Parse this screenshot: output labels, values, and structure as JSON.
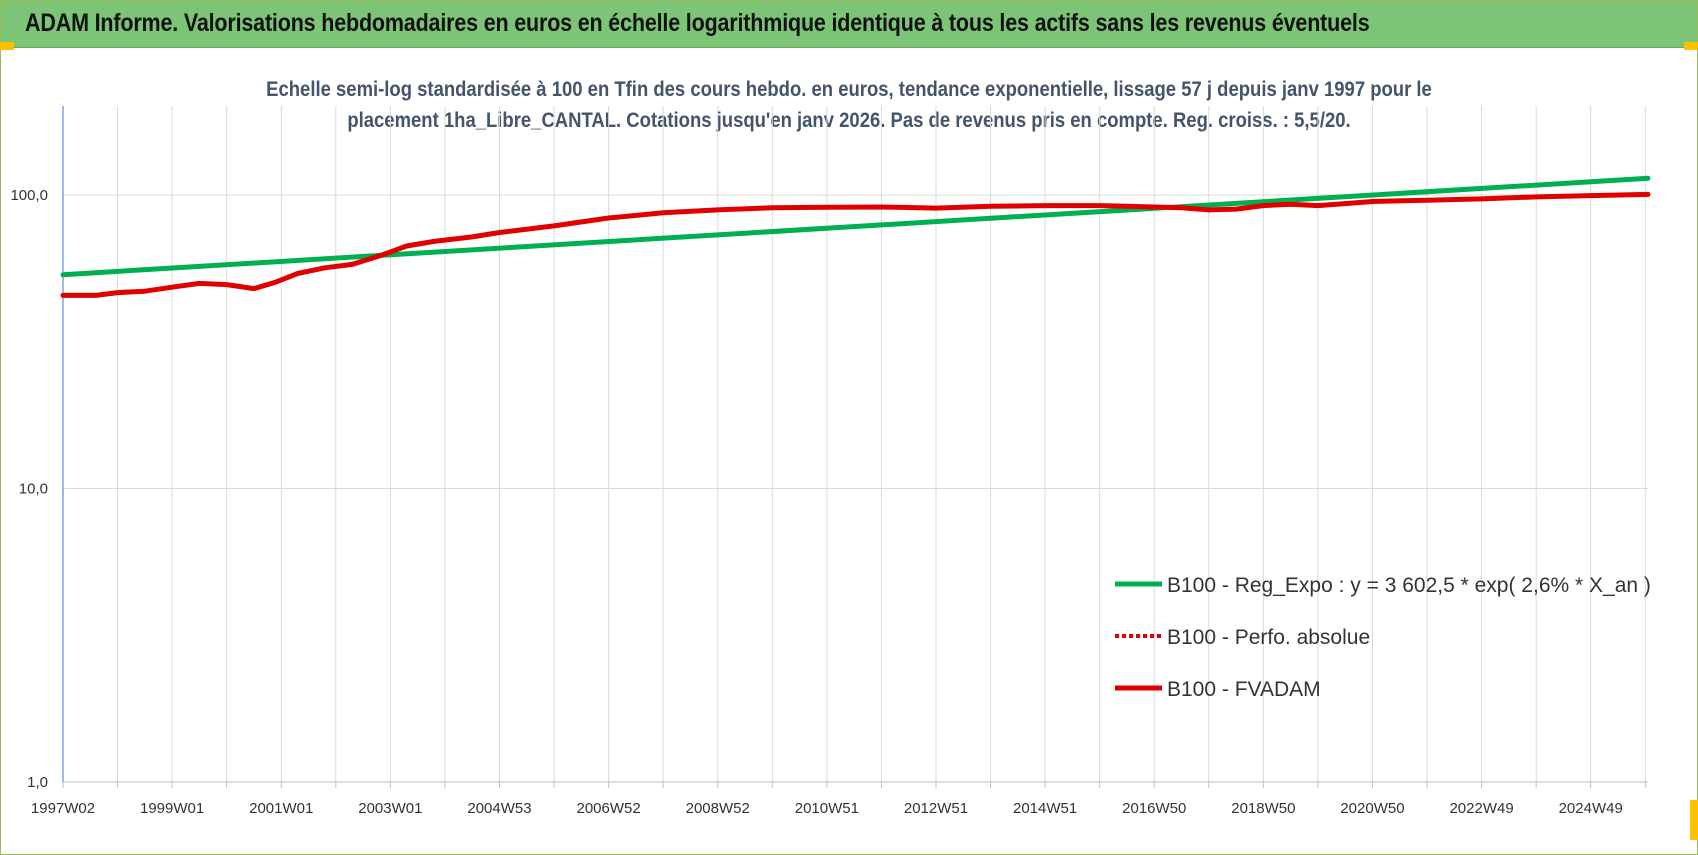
{
  "title": "ADAM Informe. Valorisations hebdomadaires en euros en échelle logarithmique identique à tous les actifs sans les revenus éventuels",
  "colors": {
    "title_bar": "#7cc576",
    "corner_accent": "#ffc000",
    "green_series": "#00b050",
    "red_series": "#e00000",
    "grid": "#d9d9d9",
    "axis": "#4472c4"
  },
  "chart_data": {
    "type": "line",
    "subtitle_lines": [
      "Echelle semi-log standardisée à 100 en Tfin des cours hebdo. en euros, tendance exponentielle, lissage 57 j depuis janv 1997 pour le",
      "placement 1ha_Libre_CANTAL. Cotations jusqu'en janv 2026. Pas de revenus pris en compte. Reg. croiss. : 5,5/20."
    ],
    "y_scale": "log",
    "ylim": [
      1,
      200
    ],
    "y_ticks": [
      {
        "value": 1,
        "label": "1,0"
      },
      {
        "value": 10,
        "label": "10,0"
      },
      {
        "value": 100,
        "label": "100,0"
      }
    ],
    "x_range": [
      1997.0,
      2026.05
    ],
    "x_ticks": [
      {
        "x": 1997.0,
        "label": "1997W02"
      },
      {
        "x": 1999.0,
        "label": "1999W01"
      },
      {
        "x": 2001.0,
        "label": "2001W01"
      },
      {
        "x": 2003.0,
        "label": "2003W01"
      },
      {
        "x": 2005.0,
        "label": "2004W53"
      },
      {
        "x": 2007.0,
        "label": "2006W52"
      },
      {
        "x": 2009.0,
        "label": "2008W52"
      },
      {
        "x": 2011.0,
        "label": "2010W51"
      },
      {
        "x": 2013.0,
        "label": "2012W51"
      },
      {
        "x": 2015.0,
        "label": "2014W51"
      },
      {
        "x": 2017.0,
        "label": "2016W50"
      },
      {
        "x": 2019.0,
        "label": "2018W50"
      },
      {
        "x": 2021.0,
        "label": "2020W50"
      },
      {
        "x": 2023.0,
        "label": "2022W49"
      },
      {
        "x": 2025.0,
        "label": "2024W49"
      }
    ],
    "grid": "vertical-and-horizontal",
    "legend_position": "lower-right",
    "series": [
      {
        "name": "B100 - Reg_Expo : y = 3 602,5 * exp( 2,6% *  X_an )",
        "color": "#00b050",
        "style": "solid",
        "x": [
          1997.0,
          2026.05
        ],
        "y": [
          53.5,
          114.0
        ]
      },
      {
        "name": "B100 - Perfo. absolue",
        "color": "#e00000",
        "style": "dotted",
        "x": [],
        "y": []
      },
      {
        "name": "B100 - FVADAM",
        "color": "#e00000",
        "style": "solid",
        "x": [
          1997.0,
          1997.6,
          1998.0,
          1998.5,
          1999.0,
          1999.5,
          2000.0,
          2000.5,
          2000.9,
          2001.3,
          2001.8,
          2002.3,
          2002.8,
          2003.3,
          2003.8,
          2004.5,
          2005.0,
          2006.0,
          2007.0,
          2008.0,
          2009.0,
          2010.0,
          2011.0,
          2012.0,
          2013.0,
          2014.0,
          2015.0,
          2016.0,
          2016.5,
          2017.0,
          2017.5,
          2018.0,
          2018.5,
          2019.0,
          2019.5,
          2020.0,
          2020.5,
          2021.0,
          2022.0,
          2023.0,
          2024.0,
          2025.0,
          2026.05
        ],
        "y": [
          45.5,
          45.5,
          46.5,
          47.0,
          48.5,
          50.0,
          49.5,
          48.0,
          50.5,
          54.0,
          56.5,
          58.0,
          62.0,
          67.0,
          69.5,
          72.0,
          74.5,
          78.5,
          83.5,
          87.0,
          89.0,
          90.5,
          90.8,
          91.0,
          90.2,
          91.5,
          92.0,
          92.0,
          91.5,
          91.0,
          90.5,
          89.0,
          89.5,
          92.0,
          93.0,
          92.0,
          93.5,
          95.0,
          96.0,
          97.0,
          98.5,
          99.5,
          100.5
        ]
      }
    ]
  }
}
